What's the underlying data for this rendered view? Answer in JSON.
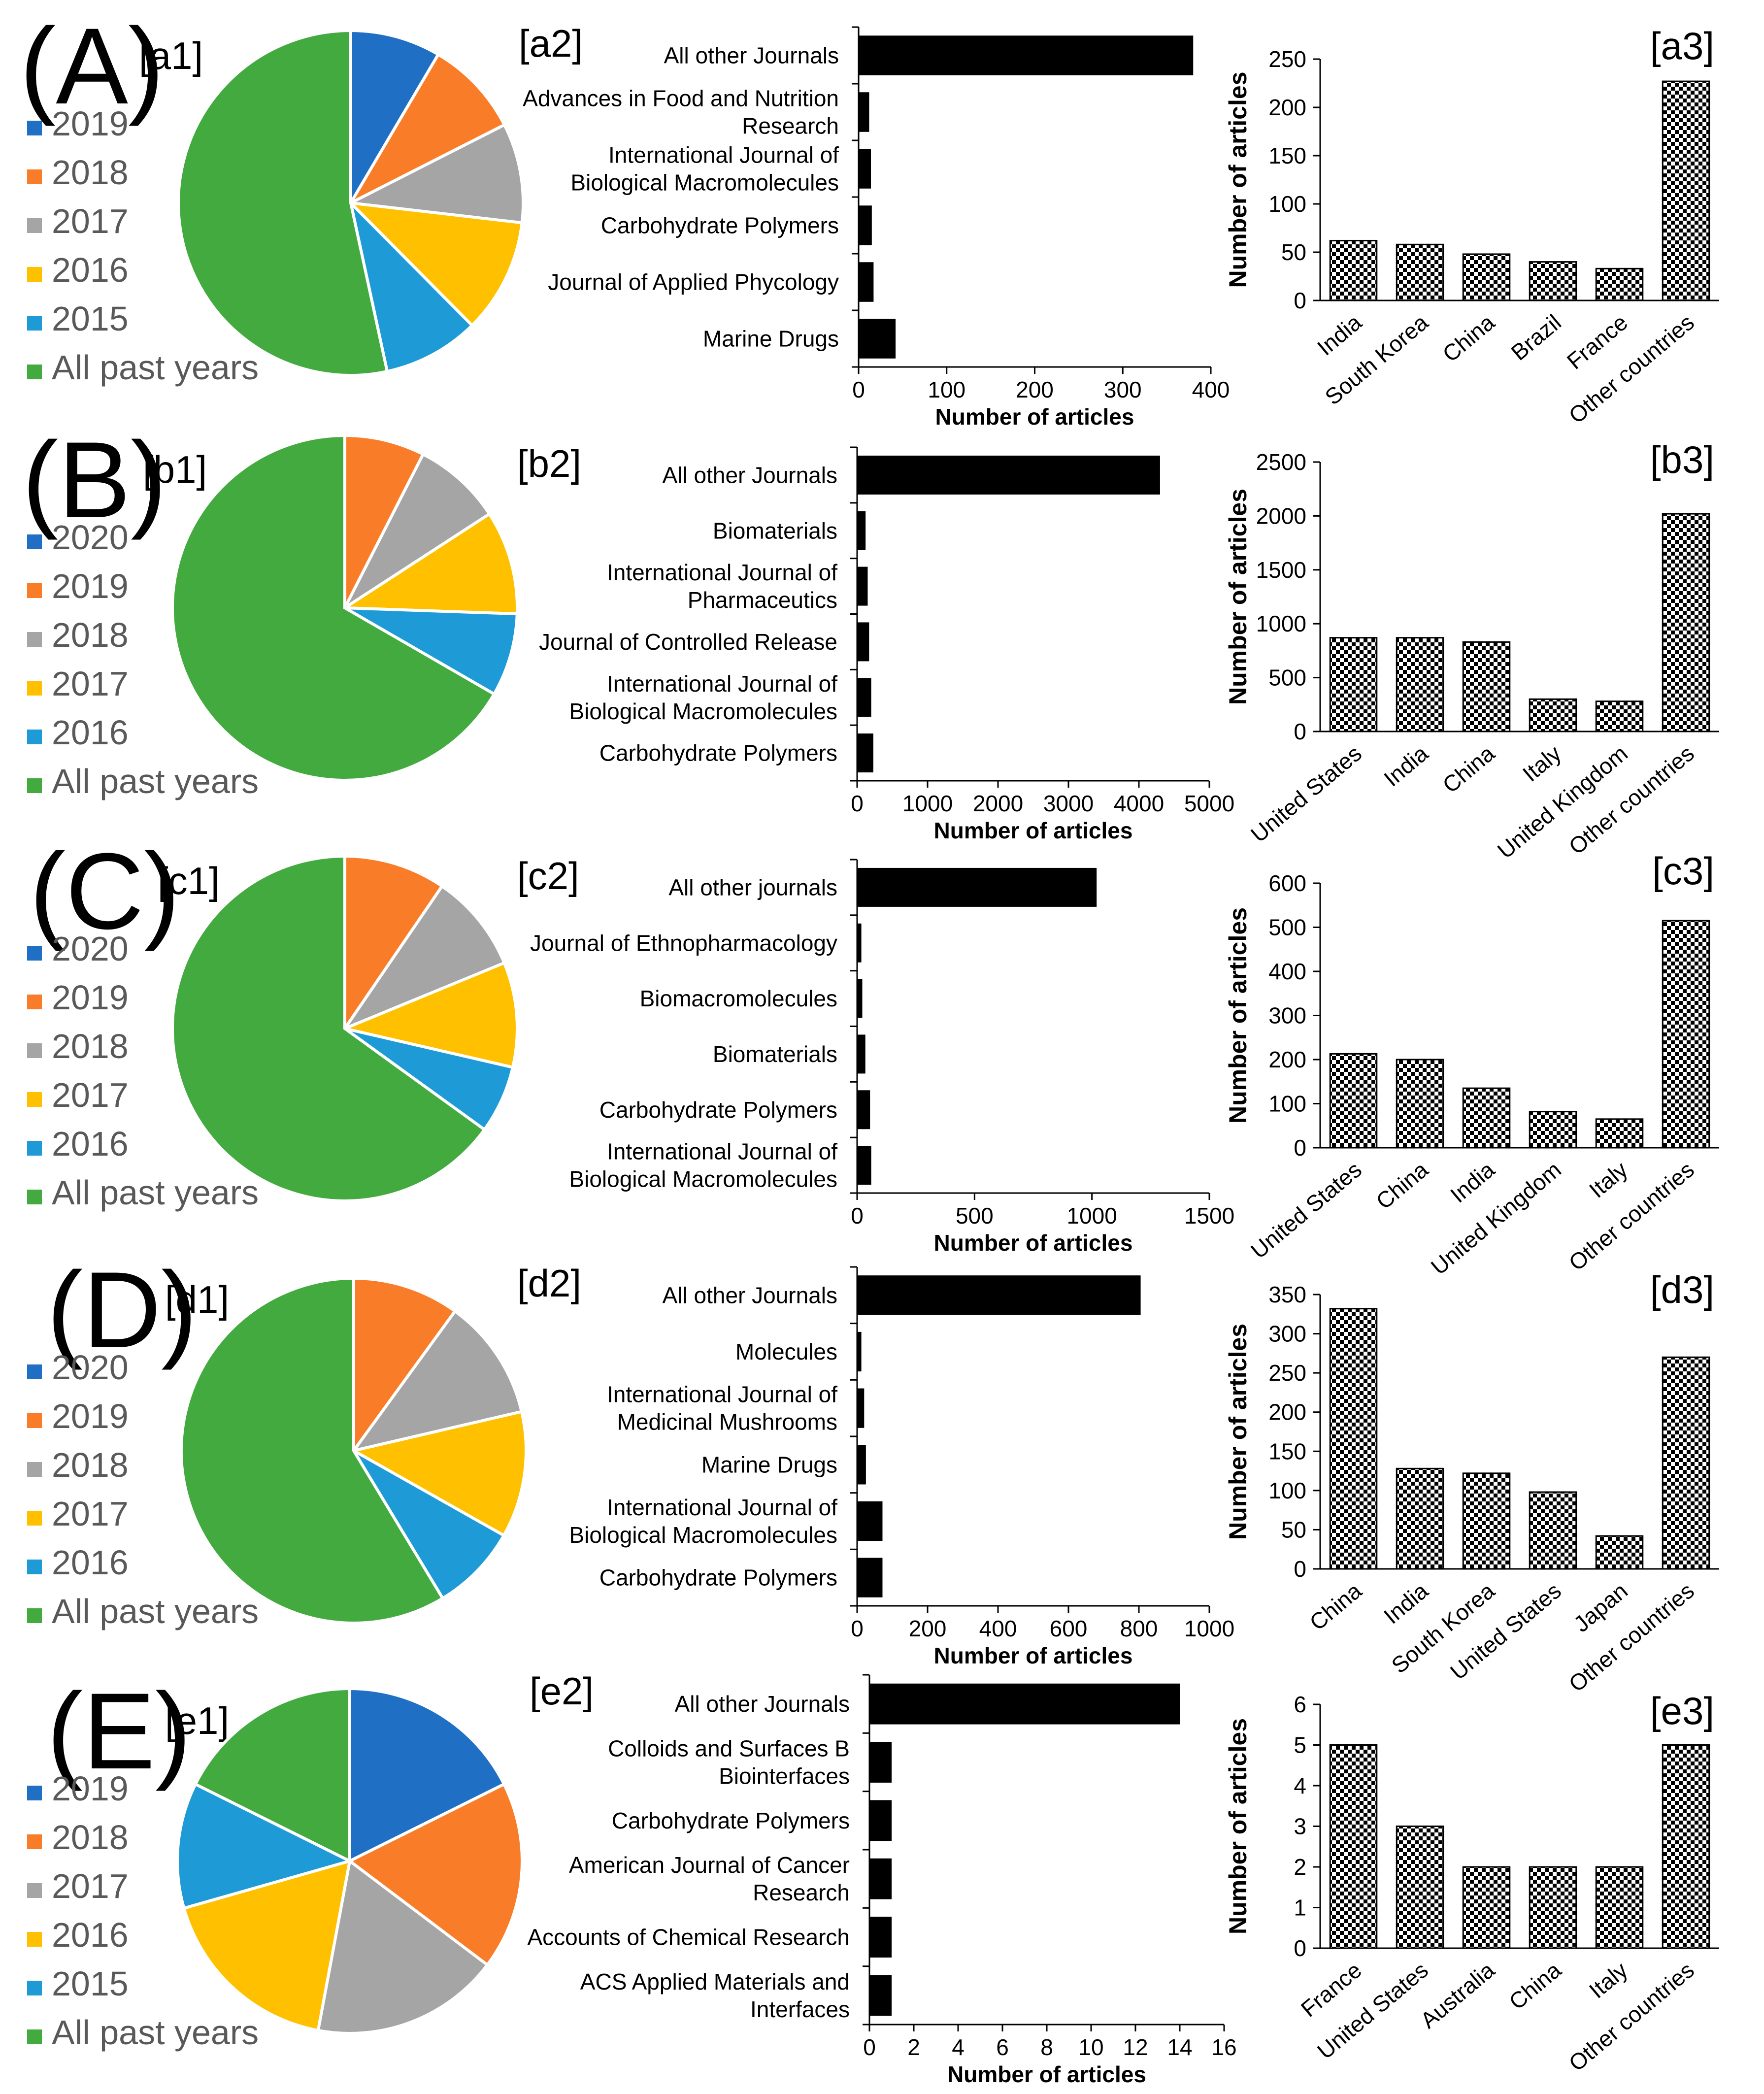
{
  "chart_data": [
    {
      "panel": "A",
      "panel_label": "(A)",
      "pie": {
        "tag": "[a1]",
        "type": "pie",
        "labels": [
          "2019",
          "2018",
          "2017",
          "2016",
          "2015",
          "All past years"
        ],
        "values": [
          30,
          32,
          33,
          38,
          32,
          189
        ],
        "colors": [
          "#1F6FC5",
          "#F97D28",
          "#A5A5A5",
          "#FFC000",
          "#1E9BD7",
          "#43AA3F"
        ]
      },
      "journals": {
        "tag": "[a2]",
        "type": "bar",
        "orientation": "horizontal",
        "categories": [
          "All other Journals",
          "Advances in Food and Nutrition Research",
          "International Journal of Biological Macromolecules",
          "Carbohydrate Polymers",
          "Journal of Applied Phycology",
          "Marine Drugs"
        ],
        "category_lines": [
          [
            "All other Journals"
          ],
          [
            "Advances in Food and Nutrition",
            "Research"
          ],
          [
            "International Journal of",
            "Biological Macromolecules"
          ],
          [
            "Carbohydrate Polymers"
          ],
          [
            "Journal of Applied Phycology"
          ],
          [
            "Marine Drugs"
          ]
        ],
        "values": [
          380,
          12,
          14,
          15,
          17,
          42
        ],
        "xlim": [
          0,
          400
        ],
        "ticks": [
          0,
          100,
          200,
          300,
          400
        ],
        "xlabel": "Number of articles"
      },
      "countries": {
        "tag": "[a3]",
        "type": "bar",
        "categories": [
          "India",
          "South Korea",
          "China",
          "Brazil",
          "France",
          "Other countries"
        ],
        "values": [
          62,
          58,
          48,
          40,
          33,
          227
        ],
        "ylim": [
          0,
          250
        ],
        "ticks": [
          0,
          50,
          100,
          150,
          200,
          250
        ],
        "ylabel": "Number of articles"
      }
    },
    {
      "panel": "B",
      "panel_label": "(B)",
      "pie": {
        "tag": "[b1]",
        "type": "pie",
        "labels": [
          "2020",
          "2019",
          "2018",
          "2017",
          "2016",
          "All past years"
        ],
        "values": [
          0,
          27,
          30,
          35,
          28,
          240
        ],
        "colors": [
          "#1F6FC5",
          "#F97D28",
          "#A5A5A5",
          "#FFC000",
          "#1E9BD7",
          "#43AA3F"
        ]
      },
      "journals": {
        "tag": "[b2]",
        "type": "bar",
        "orientation": "horizontal",
        "categories": [
          "All other Journals",
          "Biomaterials",
          "International Journal of Pharmaceutics",
          "Journal of Controlled Release",
          "International Journal of Biological Macromolecules",
          "Carbohydrate Polymers"
        ],
        "category_lines": [
          [
            "All other Journals"
          ],
          [
            "Biomaterials"
          ],
          [
            "International Journal of",
            "Pharmaceutics"
          ],
          [
            "Journal of Controlled Release"
          ],
          [
            "International Journal of",
            "Biological Macromolecules"
          ],
          [
            "Carbohydrate Polymers"
          ]
        ],
        "values": [
          4300,
          120,
          150,
          170,
          200,
          230
        ],
        "xlim": [
          0,
          5000
        ],
        "ticks": [
          0,
          1000,
          2000,
          3000,
          4000,
          5000
        ],
        "xlabel": "Number of articles"
      },
      "countries": {
        "tag": "[b3]",
        "type": "bar",
        "categories": [
          "United States",
          "India",
          "China",
          "Italy",
          "United Kingdom",
          "Other countries"
        ],
        "values": [
          870,
          870,
          830,
          300,
          280,
          2020
        ],
        "ylim": [
          0,
          2500
        ],
        "ticks": [
          0,
          500,
          1000,
          1500,
          2000,
          2500
        ],
        "ylabel": "Number of articles"
      }
    },
    {
      "panel": "C",
      "panel_label": "(C)",
      "pie": {
        "tag": "[c1]",
        "type": "pie",
        "labels": [
          "2020",
          "2019",
          "2018",
          "2017",
          "2016",
          "All past years"
        ],
        "values": [
          0,
          33,
          32,
          34,
          22,
          225
        ],
        "colors": [
          "#1F6FC5",
          "#F97D28",
          "#A5A5A5",
          "#FFC000",
          "#1E9BD7",
          "#43AA3F"
        ]
      },
      "journals": {
        "tag": "[c2]",
        "type": "bar",
        "orientation": "horizontal",
        "categories": [
          "All other journals",
          "Journal of Ethnopharmacology",
          "Biomacromolecules",
          "Biomaterials",
          "Carbohydrate Polymers",
          "International Journal of Biological Macromolecules"
        ],
        "category_lines": [
          [
            "All other journals"
          ],
          [
            "Journal of Ethnopharmacology"
          ],
          [
            "Biomacromolecules"
          ],
          [
            "Biomaterials"
          ],
          [
            "Carbohydrate Polymers"
          ],
          [
            "International Journal of",
            "Biological Macromolecules"
          ]
        ],
        "values": [
          1020,
          18,
          22,
          35,
          55,
          60
        ],
        "xlim": [
          0,
          1500
        ],
        "ticks": [
          0,
          500,
          1000,
          1500
        ],
        "xlabel": "Number of articles"
      },
      "countries": {
        "tag": "[c3]",
        "type": "bar",
        "categories": [
          "United States",
          "China",
          "India",
          "United Kingdom",
          "Italy",
          "Other countries"
        ],
        "values": [
          213,
          200,
          135,
          82,
          65,
          515
        ],
        "ylim": [
          0,
          600
        ],
        "ticks": [
          0,
          100,
          200,
          300,
          400,
          500,
          600
        ],
        "ylabel": "Number of articles"
      }
    },
    {
      "panel": "D",
      "panel_label": "(D)",
      "pie": {
        "tag": "[d1]",
        "type": "pie",
        "labels": [
          "2020",
          "2019",
          "2018",
          "2017",
          "2016",
          "All past years"
        ],
        "values": [
          0,
          22,
          25,
          26,
          18,
          129
        ],
        "colors": [
          "#1F6FC5",
          "#F97D28",
          "#A5A5A5",
          "#FFC000",
          "#1E9BD7",
          "#43AA3F"
        ]
      },
      "journals": {
        "tag": "[d2]",
        "type": "bar",
        "orientation": "horizontal",
        "categories": [
          "All other Journals",
          "Molecules",
          "International Journal of Medicinal Mushrooms",
          "Marine Drugs",
          "International Journal of Biological Macromolecules",
          "Carbohydrate Polymers"
        ],
        "category_lines": [
          [
            "All other Journals"
          ],
          [
            "Molecules"
          ],
          [
            "International Journal of",
            "Medicinal Mushrooms"
          ],
          [
            "Marine Drugs"
          ],
          [
            "International Journal of",
            "Biological Macromolecules"
          ],
          [
            "Carbohydrate Polymers"
          ]
        ],
        "values": [
          805,
          12,
          20,
          25,
          72,
          72
        ],
        "xlim": [
          0,
          1000
        ],
        "ticks": [
          0,
          200,
          400,
          600,
          800,
          1000
        ],
        "xlabel": "Number of articles"
      },
      "countries": {
        "tag": "[d3]",
        "type": "bar",
        "categories": [
          "China",
          "India",
          "South Korea",
          "United States",
          "Japan",
          "Other countries"
        ],
        "values": [
          332,
          128,
          122,
          98,
          42,
          270
        ],
        "ylim": [
          0,
          350
        ],
        "ticks": [
          0,
          50,
          100,
          150,
          200,
          250,
          300,
          350
        ],
        "ylabel": "Number of articles"
      }
    },
    {
      "panel": "E",
      "panel_label": "(E)",
      "pie": {
        "tag": "[e1]",
        "type": "pie",
        "labels": [
          "2019",
          "2018",
          "2017",
          "2016",
          "2015",
          "All past years"
        ],
        "values": [
          3,
          3,
          3,
          3,
          2,
          3
        ],
        "colors": [
          "#1F6FC5",
          "#F97D28",
          "#A5A5A5",
          "#FFC000",
          "#1E9BD7",
          "#43AA3F"
        ]
      },
      "journals": {
        "tag": "[e2]",
        "type": "bar",
        "orientation": "horizontal",
        "categories": [
          "All other Journals",
          "Colloids and Surfaces B Biointerfaces",
          "Carbohydrate Polymers",
          "American Journal of Cancer Research",
          "Accounts of Chemical Research",
          "ACS Applied Materials and Interfaces"
        ],
        "category_lines": [
          [
            "All other Journals"
          ],
          [
            "Colloids and Surfaces B",
            "Biointerfaces"
          ],
          [
            "Carbohydrate Polymers"
          ],
          [
            "American Journal of Cancer",
            "Research"
          ],
          [
            "Accounts of Chemical Research"
          ],
          [
            "ACS Applied Materials and",
            "Interfaces"
          ]
        ],
        "values": [
          14,
          1,
          1,
          1,
          1,
          1
        ],
        "xlim": [
          0,
          16
        ],
        "ticks": [
          0,
          2,
          4,
          6,
          8,
          10,
          12,
          14,
          16
        ],
        "xlabel": "Number of articles"
      },
      "countries": {
        "tag": "[e3]",
        "type": "bar",
        "categories": [
          "France",
          "United States",
          "Australia",
          "China",
          "Italy",
          "Other countries"
        ],
        "values": [
          5,
          3,
          2,
          2,
          2,
          5
        ],
        "ylim": [
          0,
          6
        ],
        "ticks": [
          0,
          1,
          2,
          3,
          4,
          5,
          6
        ],
        "ylabel": "Number of articles"
      }
    }
  ]
}
